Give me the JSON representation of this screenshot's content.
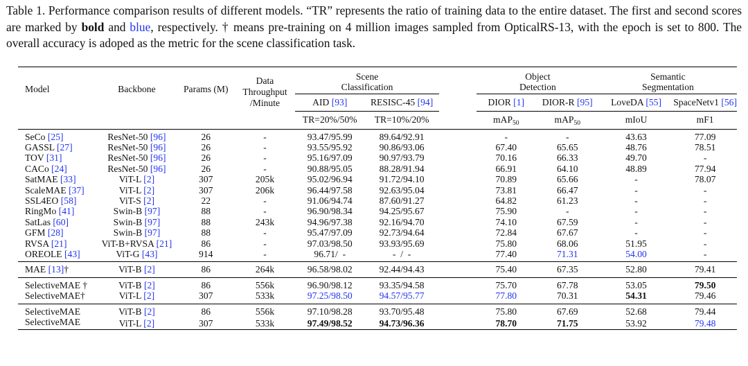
{
  "caption": {
    "p1": "Table 1. Performance comparison results of different models. “TR” represents the ratio of training data to the entire dataset. The first and second scores are marked by ",
    "bold_word": "bold",
    "and": " and ",
    "blue_word": "blue",
    "p2": ", respectively. † means pre-training on 4 million images sampled from OpticalRS-13, with the epoch is set to 800. The overall accuracy is adoped as the metric for the scene classification task."
  },
  "header": {
    "model": "Model",
    "backbone": "Backbone",
    "params": "Params (M)",
    "throughput_1": "Data",
    "throughput_2": "Throughput",
    "throughput_3": "/Minute",
    "scene_1": "Scene",
    "scene_2": "Classification",
    "object_1": "Object",
    "object_2": "Detection",
    "semantic_1": "Semantic",
    "semantic_2": "Segmentation",
    "aid": "AID",
    "aid_ref": "[93]",
    "resisc": "RESISC-45",
    "resisc_ref": "[94]",
    "dior": "DIOR",
    "dior_ref": "[1]",
    "diorr": "DIOR-R",
    "diorr_ref": "[95]",
    "loveda": "LoveDA",
    "loveda_ref": "[55]",
    "spacenet": "SpaceNetv1",
    "spacenet_ref": "[56]",
    "tr_aid": "TR=20%/50%",
    "tr_resisc": "TR=10%/20%",
    "map_1": "mAP",
    "map_1_sub": "50",
    "map_2": "mAP",
    "map_2_sub": "50",
    "miou": "mIoU",
    "mf1": "mF1"
  },
  "group1": [
    {
      "model": "SeCo",
      "mref": "[25]",
      "bb": "ResNet-50",
      "bref": "[96]",
      "params": "26",
      "thr": "-",
      "aid": "93.47/95.99",
      "resisc": "89.64/92.91",
      "dior": "-",
      "diorr": "-",
      "loveda": "43.63",
      "space": "77.09"
    },
    {
      "model": "GASSL",
      "mref": "[27]",
      "bb": "ResNet-50",
      "bref": "[96]",
      "params": "26",
      "thr": "-",
      "aid": "93.55/95.92",
      "resisc": "90.86/93.06",
      "dior": "67.40",
      "diorr": "65.65",
      "loveda": "48.76",
      "space": "78.51"
    },
    {
      "model": "TOV",
      "mref": "[31]",
      "bb": "ResNet-50",
      "bref": "[96]",
      "params": "26",
      "thr": "-",
      "aid": "95.16/97.09",
      "resisc": "90.97/93.79",
      "dior": "70.16",
      "diorr": "66.33",
      "loveda": "49.70",
      "space": "-"
    },
    {
      "model": "CACo",
      "mref": "[24]",
      "bb": "ResNet-50",
      "bref": "[96]",
      "params": "26",
      "thr": "-",
      "aid": "90.88/95.05",
      "resisc": "88.28/91.94",
      "dior": "66.91",
      "diorr": "64.10",
      "loveda": "48.89",
      "space": "77.94"
    },
    {
      "model": "SatMAE",
      "mref": "[33]",
      "bb": "ViT-L",
      "bref": "[2]",
      "params": "307",
      "thr": "205k",
      "aid": "95.02/96.94",
      "resisc": "91.72/94.10",
      "dior": "70.89",
      "diorr": "65.66",
      "loveda": "-",
      "space": "78.07"
    },
    {
      "model": "ScaleMAE",
      "mref": "[37]",
      "bb": "ViT-L",
      "bref": "[2]",
      "params": "307",
      "thr": "206k",
      "aid": "96.44/97.58",
      "resisc": "92.63/95.04",
      "dior": "73.81",
      "diorr": "66.47",
      "loveda": "-",
      "space": "-"
    },
    {
      "model": "SSL4EO",
      "mref": "[58]",
      "bb": "ViT-S",
      "bref": "[2]",
      "params": "22",
      "thr": "-",
      "aid": "91.06/94.74",
      "resisc": "87.60/91.27",
      "dior": "64.82",
      "diorr": "61.23",
      "loveda": "-",
      "space": "-"
    },
    {
      "model": "RingMo",
      "mref": "[41]",
      "bb": "Swin-B",
      "bref": "[97]",
      "params": "88",
      "thr": "-",
      "aid": "96.90/98.34",
      "resisc": "94.25/95.67",
      "dior": "75.90",
      "diorr": "-",
      "loveda": "-",
      "space": "-"
    },
    {
      "model": "SatLas",
      "mref": "[60]",
      "bb": "Swin-B",
      "bref": "[97]",
      "params": "88",
      "thr": "243k",
      "aid": "94.96/97.38",
      "resisc": "92.16/94.70",
      "dior": "74.10",
      "diorr": "67.59",
      "loveda": "-",
      "space": "-"
    },
    {
      "model": "GFM",
      "mref": "[28]",
      "bb": "Swin-B",
      "bref": "[97]",
      "params": "88",
      "thr": "-",
      "aid": "95.47/97.09",
      "resisc": "92.73/94.64",
      "dior": "72.84",
      "diorr": "67.67",
      "loveda": "-",
      "space": "-"
    },
    {
      "model": "RVSA",
      "mref": "[21]",
      "bb": "ViT-B+RVSA",
      "bref": "[21]",
      "params": "86",
      "thr": "-",
      "aid": "97.03/98.50",
      "resisc": "93.93/95.69",
      "dior": "75.80",
      "diorr": "68.06",
      "loveda": "51.95",
      "space": "-"
    },
    {
      "model": "OREOLE",
      "mref": "[43]",
      "bb": "ViT-G",
      "bref": "[43]",
      "params": "914",
      "thr": "-",
      "aid": "96.71/  -",
      "resisc": "-  /  -",
      "dior": "77.40",
      "diorr": "71.31",
      "loveda": "54.00",
      "space": "-"
    }
  ],
  "mae": {
    "model": "MAE",
    "mref": "[13]",
    "dagger": "†",
    "bb": "ViT-B",
    "bref": "[2]",
    "params": "86",
    "thr": "264k",
    "aid": "96.58/98.02",
    "resisc": "92.44/94.43",
    "dior": "75.40",
    "diorr": "67.35",
    "loveda": "52.80",
    "space": "79.41"
  },
  "group3": [
    {
      "model": "SelectiveMAE †",
      "bb": "ViT-B",
      "bref": "[2]",
      "params": "86",
      "thr": "556k",
      "aid": "96.90/98.12",
      "resisc": "93.35/94.58",
      "dior": "75.70",
      "diorr": "67.78",
      "loveda": "53.05",
      "space": "79.50"
    },
    {
      "model": "SelectiveMAE†",
      "bb": "ViT-L",
      "bref": "[2]",
      "params": "307",
      "thr": "533k",
      "aid_a": "97.25",
      "aid_b": "98.50",
      "resisc_a": "94.57",
      "resisc_b": "95.77",
      "dior": "77.80",
      "diorr": "70.31",
      "loveda": "54.31",
      "space": "79.46"
    }
  ],
  "group4": [
    {
      "model": "SelectiveMAE",
      "bb": "ViT-B",
      "bref": "[2]",
      "params": "86",
      "thr": "556k",
      "aid": "97.10/98.28",
      "resisc": "93.70/95.48",
      "dior": "75.80",
      "diorr": "67.69",
      "loveda": "52.68",
      "space": "79.44"
    },
    {
      "model": "SelectiveMAE",
      "bb": "ViT-L",
      "bref": "[2]",
      "params": "307",
      "thr": "533k",
      "aid": "97.49/98.52",
      "resisc": "94.73/96.36",
      "dior": "78.70",
      "diorr": "71.75",
      "loveda": "53.92",
      "space": "79.48"
    }
  ],
  "colors": {
    "blue": "#2233ee",
    "text": "#111111"
  }
}
